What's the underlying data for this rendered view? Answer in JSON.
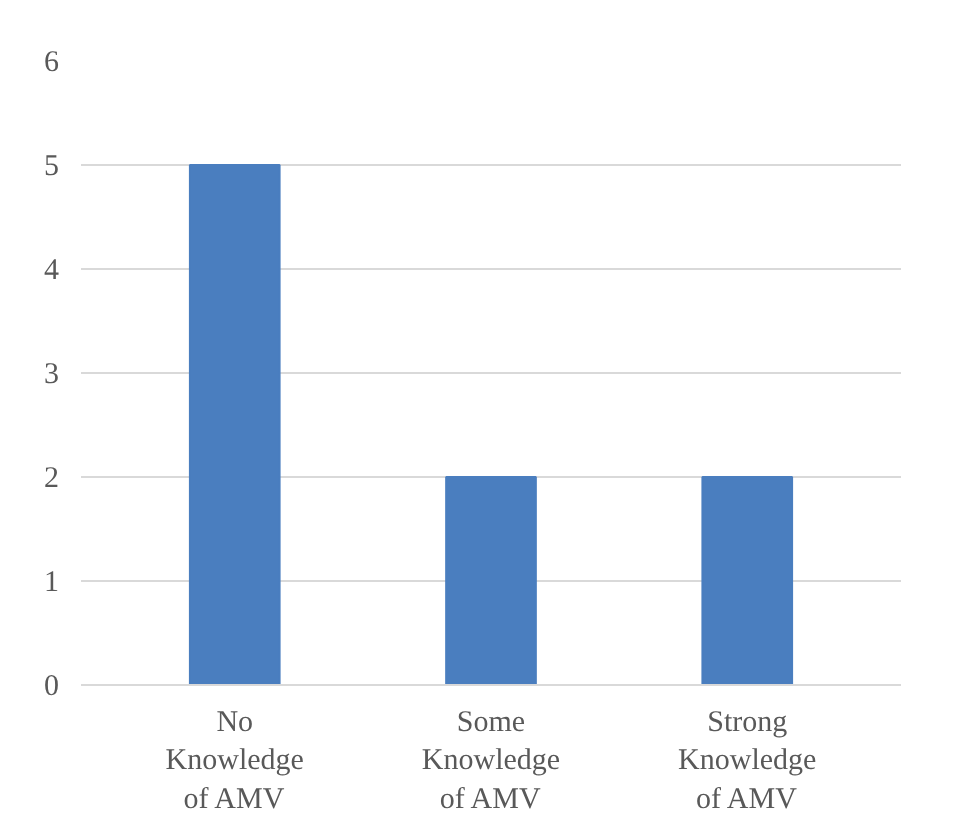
{
  "chart_data": {
    "type": "bar",
    "categories": [
      "No\nKnowledge\nof AMV",
      "Some\nKnowledge\nof AMV",
      "Strong\nKnowledge\nof AMV"
    ],
    "values": [
      5,
      2,
      2
    ],
    "color": "#4a7ebf",
    "ylim": [
      0,
      6
    ],
    "yticks": [
      0,
      1,
      2,
      3,
      4,
      5,
      6
    ],
    "grid": "y"
  }
}
